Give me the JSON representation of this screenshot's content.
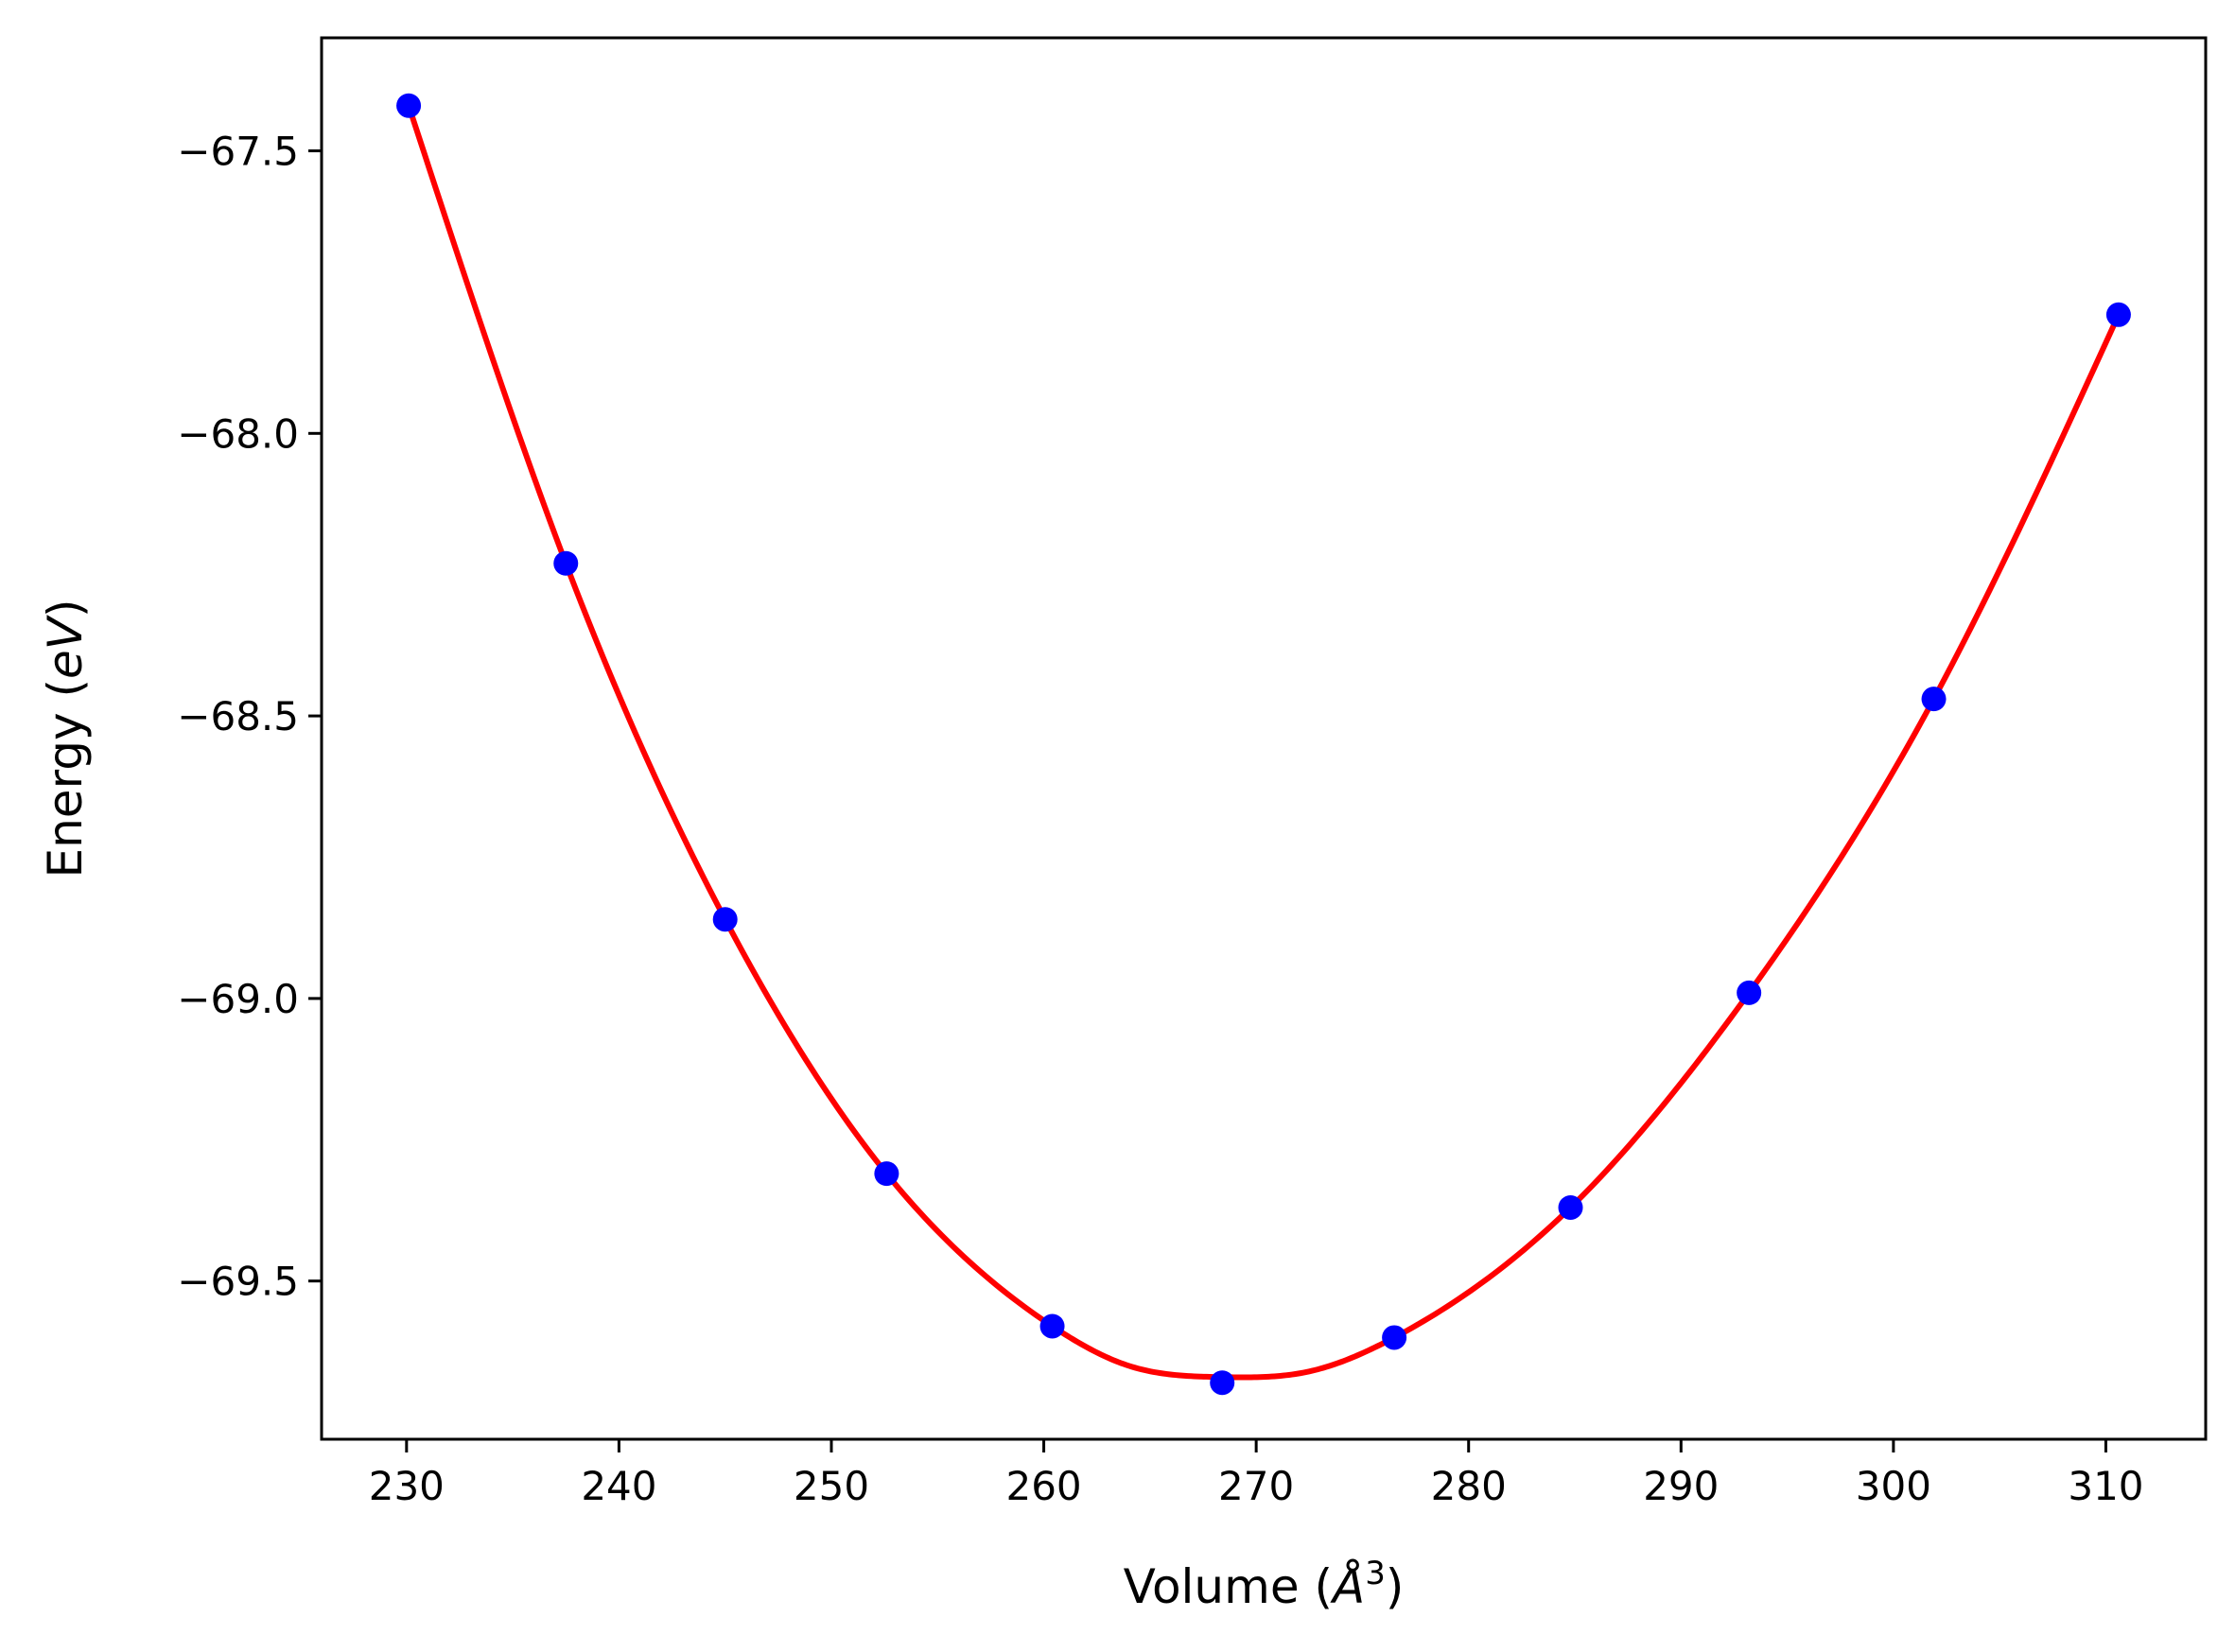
{
  "chart_data": {
    "type": "scatter",
    "title": "",
    "xlabel": {
      "prefix": "Volume (",
      "symbol": "Å",
      "superscript": "3",
      "suffix": ")"
    },
    "ylabel": {
      "prefix": "Energy (",
      "unit": "eV",
      "suffix": ")"
    },
    "xlim": [
      226,
      314.7
    ],
    "ylim": [
      -69.78,
      -67.3
    ],
    "xticks": [
      230,
      240,
      250,
      260,
      270,
      280,
      290,
      300,
      310
    ],
    "yticks": [
      -67.5,
      -68.0,
      -68.5,
      -69.0,
      -69.5
    ],
    "xtick_labels": [
      "230",
      "240",
      "250",
      "260",
      "270",
      "280",
      "290",
      "300",
      "310"
    ],
    "ytick_labels": [
      "−67.5",
      "−68.0",
      "−68.5",
      "−69.0",
      "−69.5"
    ],
    "grid": false,
    "series": [
      {
        "kind": "points",
        "color": "#0000ff",
        "x": [
          230.1,
          237.5,
          245.0,
          252.6,
          260.4,
          268.4,
          276.5,
          284.8,
          293.2,
          301.9,
          310.6
        ],
        "y": [
          -67.42,
          -68.23,
          -68.86,
          -69.31,
          -69.58,
          -69.68,
          -69.6,
          -69.37,
          -68.99,
          -68.47,
          -67.79
        ]
      },
      {
        "kind": "fit-curve",
        "color": "#ff0000",
        "x": [
          230.1,
          237.5,
          245.0,
          252.6,
          260.4,
          264.0,
          268.4,
          272.5,
          276.5,
          284.8,
          293.2,
          301.9,
          310.6
        ],
        "y": [
          -67.42,
          -68.23,
          -68.86,
          -69.31,
          -69.58,
          -69.65,
          -69.67,
          -69.66,
          -69.6,
          -69.37,
          -68.99,
          -68.47,
          -67.79
        ]
      }
    ]
  }
}
